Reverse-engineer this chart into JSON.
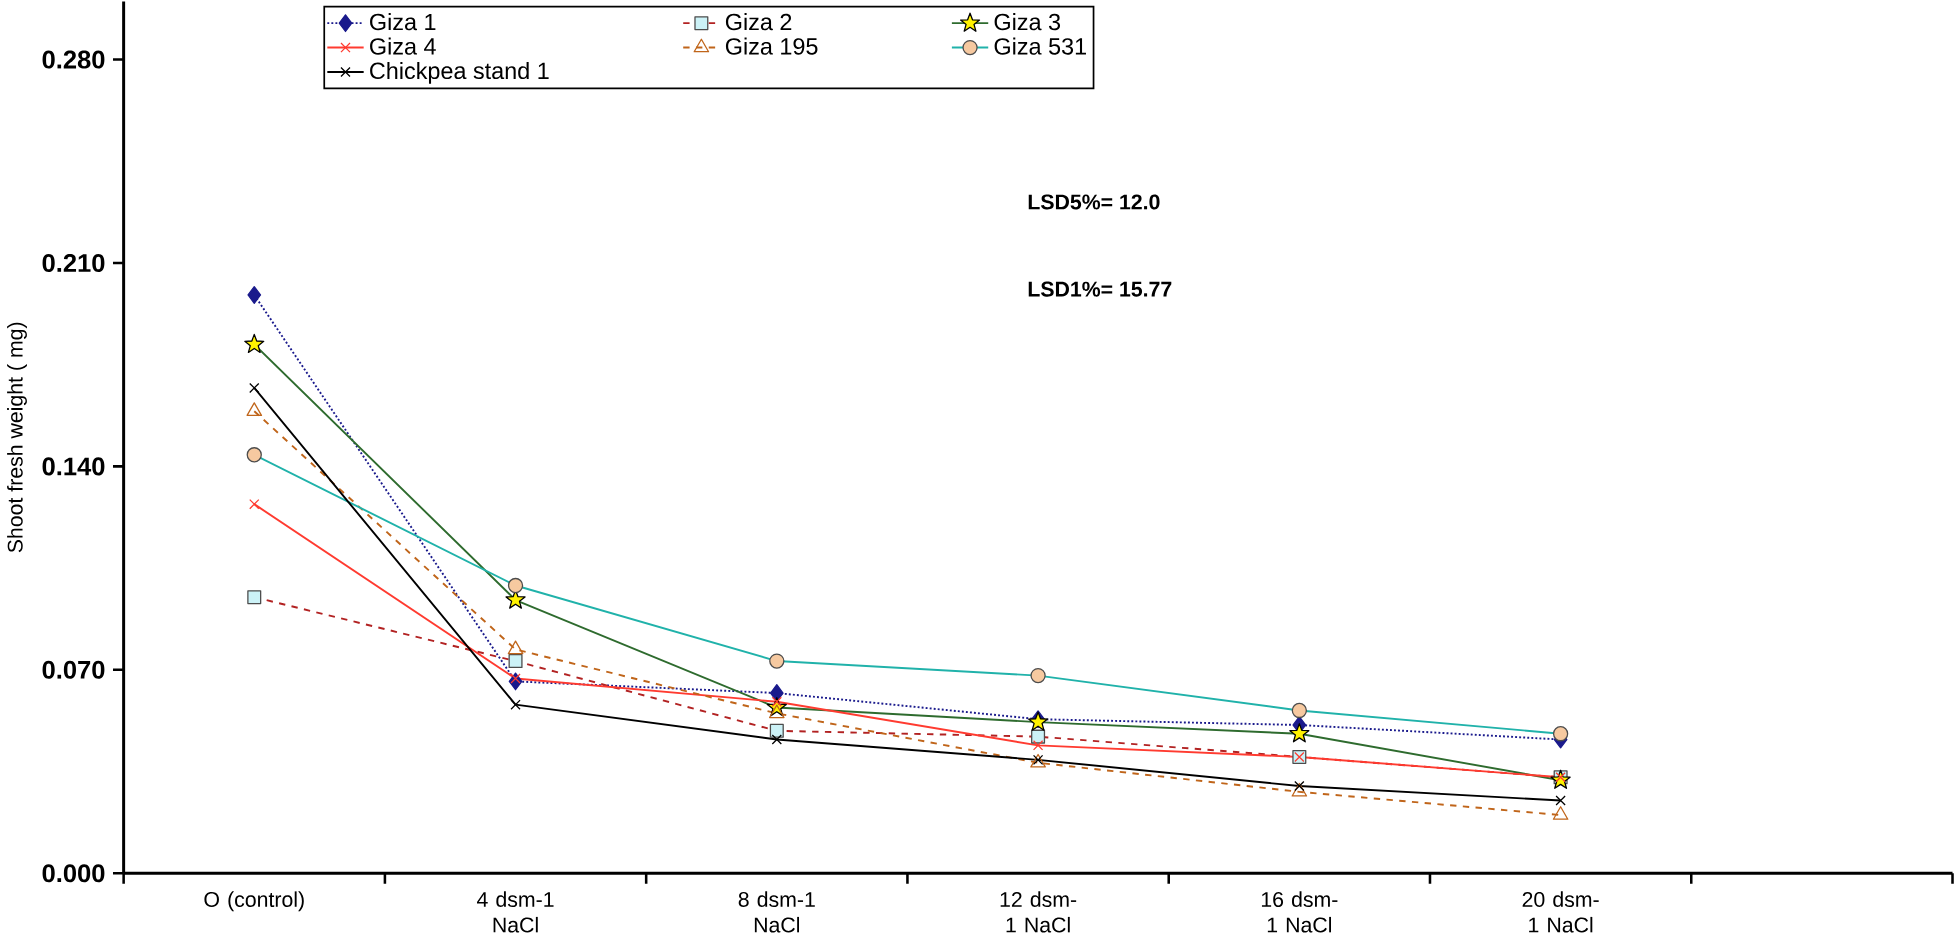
{
  "chart_data": {
    "type": "line",
    "ylabel": "Shoot fresh weight ( mg)",
    "categories": [
      "O (control)",
      "4  dsm-1 NaCl",
      "8  dsm-1 NaCl",
      "12 dsm-1 NaCl",
      "16 dsm-1 NaCl",
      "20 dsm-1 NaCl"
    ],
    "series": [
      {
        "name": "Giza 1",
        "color": "#1a1a8c",
        "marker": "diamond",
        "line_style": "dotted",
        "values": [
          0.199,
          0.066,
          0.062,
          0.053,
          0.051,
          0.046
        ]
      },
      {
        "name": "Giza  2",
        "color": "#b22222",
        "marker": "square",
        "line_style": "dashed",
        "values": [
          0.095,
          0.073,
          0.049,
          0.047,
          0.04,
          0.033
        ]
      },
      {
        "name": "Giza  3",
        "color": "#2e6b2e",
        "marker": "star",
        "line_style": "solid",
        "values": [
          0.182,
          0.094,
          0.057,
          0.052,
          0.048,
          0.032
        ]
      },
      {
        "name": "Giza  4",
        "color": "#ff3b30",
        "marker": "cross",
        "line_style": "solid",
        "values": [
          0.127,
          0.067,
          0.059,
          0.044,
          0.04,
          0.033
        ]
      },
      {
        "name": "Giza  195",
        "color": "#c0651a",
        "marker": "triangle",
        "line_style": "dashed",
        "values": [
          0.159,
          0.077,
          0.055,
          0.038,
          0.028,
          0.02
        ]
      },
      {
        "name": "Giza 531",
        "color": "#20b2aa",
        "marker": "circle",
        "line_style": "solid",
        "values": [
          0.144,
          0.099,
          0.073,
          0.068,
          0.056,
          0.048
        ]
      },
      {
        "name": "Chickpea stand  1",
        "color": "#000000",
        "marker": "cross",
        "line_style": "solid",
        "values": [
          0.167,
          0.058,
          0.046,
          0.039,
          0.03,
          0.025
        ]
      }
    ],
    "ylim": [
      0,
      0.3
    ],
    "yticks": [
      {
        "value": 0,
        "label": "0.000"
      },
      {
        "value": 0.07,
        "label": "0.070"
      },
      {
        "value": 0.14,
        "label": "0.140"
      },
      {
        "value": 0.21,
        "label": "0.210"
      },
      {
        "value": 0.28,
        "label": "0.280"
      }
    ],
    "grid": false,
    "legend": "top",
    "annotations": [
      "LSD5%= 12.0",
      "LSD1%= 15.77"
    ]
  }
}
